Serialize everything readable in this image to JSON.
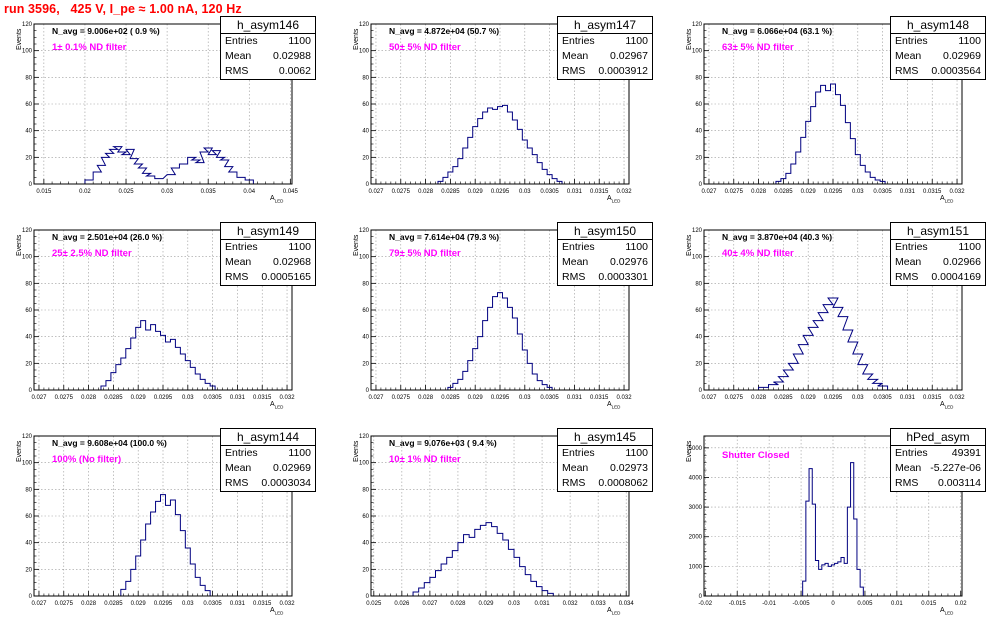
{
  "page": {
    "run_title": "run 3596,   425 V, I_pe ≈ 1.00 nA, 120 Hz"
  },
  "colors": {
    "hist": "#000080",
    "grid": "#9a9a9a",
    "filter_text": "#ff00ff",
    "title_text": "#ff0000"
  },
  "panels": [
    {
      "id": "h_asym146",
      "stat_title": "h_asym146",
      "entries": "1100",
      "mean": "0.02988",
      "rms": "0.0062",
      "navg": "N_avg = 9.006e+02 ( 0.9 %)",
      "filter": "1± 0.1% ND filter",
      "ylabel": "Events",
      "xlabel": "A",
      "xsub": "LED",
      "xlim": [
        0.0138,
        0.0452
      ],
      "ylim": [
        0,
        120
      ],
      "xticks": [
        "0.015",
        "0.02",
        "0.025",
        "0.03",
        "0.035",
        "0.04",
        "0.045"
      ],
      "yticks": [
        "0",
        "20",
        "40",
        "60",
        "80",
        "100",
        "120"
      ]
    },
    {
      "id": "h_asym147",
      "stat_title": "h_asym147",
      "entries": "1100",
      "mean": "0.02967",
      "rms": "0.0003912",
      "navg": "N_avg = 4.872e+04 (50.7 %)",
      "filter": "50± 5% ND filter",
      "ylabel": "Events",
      "xlabel": "A",
      "xsub": "LED",
      "xlim": [
        0.0269,
        0.0321
      ],
      "ylim": [
        0,
        120
      ],
      "xticks": [
        "0.027",
        "0.0275",
        "0.028",
        "0.0285",
        "0.029",
        "0.0295",
        "0.03",
        "0.0305",
        "0.031",
        "0.0315",
        "0.032"
      ],
      "yticks": [
        "0",
        "20",
        "40",
        "60",
        "80",
        "100",
        "120"
      ]
    },
    {
      "id": "h_asym148",
      "stat_title": "h_asym148",
      "entries": "1100",
      "mean": "0.02969",
      "rms": "0.0003564",
      "navg": "N_avg = 6.066e+04 (63.1 %)",
      "filter": "63± 5% ND filter",
      "ylabel": "Events",
      "xlabel": "A",
      "xsub": "LED",
      "xlim": [
        0.0269,
        0.0321
      ],
      "ylim": [
        0,
        120
      ],
      "xticks": [
        "0.027",
        "0.0275",
        "0.028",
        "0.0285",
        "0.029",
        "0.0295",
        "0.03",
        "0.0305",
        "0.031",
        "0.0315",
        "0.032"
      ],
      "yticks": [
        "0",
        "20",
        "40",
        "60",
        "80",
        "100",
        "120"
      ]
    },
    {
      "id": "h_asym149",
      "stat_title": "h_asym149",
      "entries": "1100",
      "mean": "0.02968",
      "rms": "0.0005165",
      "navg": "N_avg = 2.501e+04 (26.0 %)",
      "filter": "25± 2.5% ND filter",
      "ylabel": "Events",
      "xlabel": "A",
      "xsub": "LED",
      "xlim": [
        0.0269,
        0.0321
      ],
      "ylim": [
        0,
        120
      ],
      "xticks": [
        "0.027",
        "0.0275",
        "0.028",
        "0.0285",
        "0.029",
        "0.0295",
        "0.03",
        "0.0305",
        "0.031",
        "0.0315",
        "0.032"
      ],
      "yticks": [
        "0",
        "20",
        "40",
        "60",
        "80",
        "100",
        "120"
      ]
    },
    {
      "id": "h_asym150",
      "stat_title": "h_asym150",
      "entries": "1100",
      "mean": "0.02976",
      "rms": "0.0003301",
      "navg": "N_avg = 7.614e+04 (79.3 %)",
      "filter": "79± 5% ND filter",
      "ylabel": "Events",
      "xlabel": "A",
      "xsub": "LED",
      "xlim": [
        0.0269,
        0.0321
      ],
      "ylim": [
        0,
        120
      ],
      "xticks": [
        "0.027",
        "0.0275",
        "0.028",
        "0.0285",
        "0.029",
        "0.0295",
        "0.03",
        "0.0305",
        "0.031",
        "0.0315",
        "0.032"
      ],
      "yticks": [
        "0",
        "20",
        "40",
        "60",
        "80",
        "100",
        "120"
      ]
    },
    {
      "id": "h_asym151",
      "stat_title": "h_asym151",
      "entries": "1100",
      "mean": "0.02966",
      "rms": "0.0004169",
      "navg": "N_avg = 3.870e+04 (40.3 %)",
      "filter": "40± 4% ND filter",
      "ylabel": "Events",
      "xlabel": "A",
      "xsub": "LED",
      "xlim": [
        0.0269,
        0.0321
      ],
      "ylim": [
        0,
        120
      ],
      "xticks": [
        "0.027",
        "0.0275",
        "0.028",
        "0.0285",
        "0.029",
        "0.0295",
        "0.03",
        "0.0305",
        "0.031",
        "0.0315",
        "0.032"
      ],
      "yticks": [
        "0",
        "20",
        "40",
        "60",
        "80",
        "100",
        "120"
      ]
    },
    {
      "id": "h_asym144",
      "stat_title": "h_asym144",
      "entries": "1100",
      "mean": "0.02969",
      "rms": "0.0003034",
      "navg": "N_avg = 9.608e+04 (100.0 %)",
      "filter": "100% (No filter)",
      "ylabel": "Events",
      "xlabel": "A",
      "xsub": "LED",
      "xlim": [
        0.0269,
        0.0321
      ],
      "ylim": [
        0,
        120
      ],
      "xticks": [
        "0.027",
        "0.0275",
        "0.028",
        "0.0285",
        "0.029",
        "0.0295",
        "0.03",
        "0.0305",
        "0.031",
        "0.0315",
        "0.032"
      ],
      "yticks": [
        "0",
        "20",
        "40",
        "60",
        "80",
        "100",
        "120"
      ]
    },
    {
      "id": "h_asym145",
      "stat_title": "h_asym145",
      "entries": "1100",
      "mean": "0.02973",
      "rms": "0.0008062",
      "navg": "N_avg = 9.076e+03 ( 9.4 %)",
      "filter": "10± 1% ND filter",
      "ylabel": "Events",
      "xlabel": "A",
      "xsub": "LED",
      "xlim": [
        0.0249,
        0.0341
      ],
      "ylim": [
        0,
        120
      ],
      "xticks": [
        "0.025",
        "0.026",
        "0.027",
        "0.028",
        "0.029",
        "0.03",
        "0.031",
        "0.032",
        "0.033",
        "0.034"
      ],
      "yticks": [
        "0",
        "20",
        "40",
        "60",
        "80",
        "100",
        "120"
      ]
    },
    {
      "id": "hPed_asym",
      "stat_title": "hPed_asym",
      "entries": "49391",
      "mean": "-5.227e-06",
      "rms": "0.003114",
      "navg": "",
      "filter": "Shutter Closed",
      "ylabel": "Events",
      "xlabel": "A",
      "xsub": "LED",
      "xlim": [
        -0.0202,
        0.0202
      ],
      "ylim": [
        0,
        5400
      ],
      "xticks": [
        "-0.02",
        "-0.015",
        "-0.01",
        "-0.005",
        "0",
        "0.005",
        "0.01",
        "0.015",
        "0.02"
      ],
      "yticks": [
        "0",
        "1000",
        "2000",
        "3000",
        "4000",
        "5000"
      ]
    }
  ],
  "chart_data": [
    {
      "type": "bar",
      "name": "h_asym146",
      "x_range": [
        0.0138,
        0.0452
      ],
      "ylim": [
        0,
        120
      ],
      "bins": [
        [
          0.0205,
          3
        ],
        [
          0.0215,
          9
        ],
        [
          0.022,
          14
        ],
        [
          0.0225,
          20
        ],
        [
          0.023,
          23
        ],
        [
          0.0235,
          26
        ],
        [
          0.024,
          28
        ],
        [
          0.0245,
          24
        ],
        [
          0.025,
          22
        ],
        [
          0.0255,
          26
        ],
        [
          0.026,
          19
        ],
        [
          0.0265,
          15
        ],
        [
          0.027,
          12
        ],
        [
          0.0275,
          8
        ],
        [
          0.028,
          6
        ],
        [
          0.029,
          4
        ],
        [
          0.0305,
          7
        ],
        [
          0.031,
          12
        ],
        [
          0.032,
          15
        ],
        [
          0.033,
          20
        ],
        [
          0.0335,
          18
        ],
        [
          0.034,
          16
        ],
        [
          0.0345,
          24
        ],
        [
          0.035,
          27
        ],
        [
          0.0355,
          22
        ],
        [
          0.036,
          25
        ],
        [
          0.0365,
          20
        ],
        [
          0.037,
          18
        ],
        [
          0.0375,
          13
        ],
        [
          0.038,
          9
        ],
        [
          0.039,
          5
        ],
        [
          0.04,
          3
        ]
      ]
    },
    {
      "type": "bar",
      "name": "h_asym147",
      "x_range": [
        0.0269,
        0.0321
      ],
      "ylim": [
        0,
        120
      ],
      "bins": [
        [
          0.0283,
          2
        ],
        [
          0.0284,
          5
        ],
        [
          0.0285,
          9
        ],
        [
          0.0286,
          13
        ],
        [
          0.0287,
          19
        ],
        [
          0.0288,
          27
        ],
        [
          0.0289,
          35
        ],
        [
          0.029,
          43
        ],
        [
          0.0291,
          49
        ],
        [
          0.0292,
          54
        ],
        [
          0.0293,
          57
        ],
        [
          0.0294,
          56
        ],
        [
          0.0295,
          58
        ],
        [
          0.0296,
          59
        ],
        [
          0.0297,
          54
        ],
        [
          0.0298,
          48
        ],
        [
          0.0299,
          41
        ],
        [
          0.03,
          33
        ],
        [
          0.0301,
          27
        ],
        [
          0.0302,
          22
        ],
        [
          0.0303,
          16
        ],
        [
          0.0304,
          11
        ],
        [
          0.0305,
          7
        ],
        [
          0.0306,
          4
        ],
        [
          0.0307,
          2
        ]
      ]
    },
    {
      "type": "bar",
      "name": "h_asym148",
      "x_range": [
        0.0269,
        0.0321
      ],
      "ylim": [
        0,
        120
      ],
      "bins": [
        [
          0.0284,
          2
        ],
        [
          0.0285,
          4
        ],
        [
          0.0286,
          8
        ],
        [
          0.0287,
          15
        ],
        [
          0.0288,
          24
        ],
        [
          0.0289,
          35
        ],
        [
          0.029,
          47
        ],
        [
          0.0291,
          58
        ],
        [
          0.0292,
          69
        ],
        [
          0.0293,
          74
        ],
        [
          0.0294,
          70
        ],
        [
          0.0295,
          75
        ],
        [
          0.0296,
          67
        ],
        [
          0.0297,
          59
        ],
        [
          0.0298,
          46
        ],
        [
          0.0299,
          34
        ],
        [
          0.03,
          22
        ],
        [
          0.0301,
          14
        ],
        [
          0.0302,
          9
        ],
        [
          0.0303,
          5
        ],
        [
          0.0304,
          3
        ],
        [
          0.0305,
          2
        ]
      ]
    },
    {
      "type": "bar",
      "name": "h_asym149",
      "x_range": [
        0.0269,
        0.0321
      ],
      "ylim": [
        0,
        120
      ],
      "bins": [
        [
          0.0283,
          3
        ],
        [
          0.0284,
          7
        ],
        [
          0.0285,
          13
        ],
        [
          0.0286,
          19
        ],
        [
          0.0287,
          24
        ],
        [
          0.0288,
          31
        ],
        [
          0.0289,
          39
        ],
        [
          0.029,
          47
        ],
        [
          0.0291,
          52
        ],
        [
          0.0292,
          45
        ],
        [
          0.0293,
          49
        ],
        [
          0.0294,
          44
        ],
        [
          0.0295,
          41
        ],
        [
          0.0296,
          36
        ],
        [
          0.0297,
          38
        ],
        [
          0.0298,
          32
        ],
        [
          0.0299,
          27
        ],
        [
          0.03,
          22
        ],
        [
          0.0301,
          17
        ],
        [
          0.0302,
          12
        ],
        [
          0.0303,
          8
        ],
        [
          0.0304,
          5
        ],
        [
          0.0305,
          3
        ]
      ]
    },
    {
      "type": "bar",
      "name": "h_asym150",
      "x_range": [
        0.0269,
        0.0321
      ],
      "ylim": [
        0,
        120
      ],
      "bins": [
        [
          0.0285,
          2
        ],
        [
          0.0286,
          5
        ],
        [
          0.0287,
          8
        ],
        [
          0.0288,
          14
        ],
        [
          0.0289,
          22
        ],
        [
          0.029,
          31
        ],
        [
          0.0291,
          40
        ],
        [
          0.0292,
          52
        ],
        [
          0.0293,
          62
        ],
        [
          0.0294,
          70
        ],
        [
          0.0295,
          73
        ],
        [
          0.0296,
          69
        ],
        [
          0.0297,
          62
        ],
        [
          0.0298,
          54
        ],
        [
          0.0299,
          42
        ],
        [
          0.03,
          30
        ],
        [
          0.0301,
          20
        ],
        [
          0.0302,
          12
        ],
        [
          0.0303,
          7
        ],
        [
          0.0304,
          4
        ],
        [
          0.0305,
          2
        ]
      ]
    },
    {
      "type": "bar",
      "name": "h_asym151",
      "x_range": [
        0.0269,
        0.0321
      ],
      "ylim": [
        0,
        120
      ],
      "bins": [
        [
          0.0281,
          2
        ],
        [
          0.0283,
          4
        ],
        [
          0.0284,
          6
        ],
        [
          0.0285,
          10
        ],
        [
          0.0286,
          15
        ],
        [
          0.0287,
          20
        ],
        [
          0.0288,
          27
        ],
        [
          0.0289,
          34
        ],
        [
          0.029,
          41
        ],
        [
          0.0291,
          47
        ],
        [
          0.0292,
          52
        ],
        [
          0.0293,
          58
        ],
        [
          0.0294,
          64
        ],
        [
          0.0295,
          69
        ],
        [
          0.0296,
          62
        ],
        [
          0.0297,
          55
        ],
        [
          0.0298,
          45
        ],
        [
          0.0299,
          36
        ],
        [
          0.03,
          27
        ],
        [
          0.0301,
          19
        ],
        [
          0.0302,
          12
        ],
        [
          0.0303,
          8
        ],
        [
          0.0304,
          5
        ],
        [
          0.0305,
          3
        ]
      ]
    },
    {
      "type": "bar",
      "name": "h_asym144",
      "x_range": [
        0.0269,
        0.0321
      ],
      "ylim": [
        0,
        120
      ],
      "bins": [
        [
          0.0287,
          5
        ],
        [
          0.0288,
          11
        ],
        [
          0.0289,
          20
        ],
        [
          0.029,
          30
        ],
        [
          0.0291,
          42
        ],
        [
          0.0292,
          54
        ],
        [
          0.0293,
          63
        ],
        [
          0.0294,
          71
        ],
        [
          0.0295,
          76
        ],
        [
          0.0296,
          68
        ],
        [
          0.0297,
          72
        ],
        [
          0.0298,
          61
        ],
        [
          0.0299,
          49
        ],
        [
          0.03,
          36
        ],
        [
          0.0301,
          24
        ],
        [
          0.0302,
          14
        ],
        [
          0.0303,
          8
        ],
        [
          0.0304,
          4
        ]
      ]
    },
    {
      "type": "bar",
      "name": "h_asym145",
      "x_range": [
        0.0249,
        0.0341
      ],
      "ylim": [
        0,
        120
      ],
      "bins": [
        [
          0.0265,
          3
        ],
        [
          0.0267,
          6
        ],
        [
          0.0269,
          10
        ],
        [
          0.0271,
          14
        ],
        [
          0.0273,
          19
        ],
        [
          0.0275,
          24
        ],
        [
          0.0277,
          29
        ],
        [
          0.0279,
          34
        ],
        [
          0.0281,
          40
        ],
        [
          0.0283,
          46
        ],
        [
          0.0285,
          44
        ],
        [
          0.0287,
          50
        ],
        [
          0.0289,
          53
        ],
        [
          0.0291,
          55
        ],
        [
          0.0293,
          52
        ],
        [
          0.0295,
          47
        ],
        [
          0.0297,
          42
        ],
        [
          0.0299,
          35
        ],
        [
          0.0301,
          29
        ],
        [
          0.0303,
          22
        ],
        [
          0.0305,
          16
        ],
        [
          0.0307,
          11
        ],
        [
          0.0309,
          7
        ],
        [
          0.0311,
          4
        ],
        [
          0.0313,
          2
        ]
      ]
    },
    {
      "type": "bar",
      "name": "hPed_asym",
      "x_range": [
        -0.0202,
        0.0202
      ],
      "ylim": [
        0,
        5400
      ],
      "bins": [
        [
          -0.0045,
          500
        ],
        [
          -0.004,
          3200
        ],
        [
          -0.0035,
          4300
        ],
        [
          -0.003,
          3100
        ],
        [
          -0.0025,
          1200
        ],
        [
          -0.002,
          900
        ],
        [
          -0.0015,
          1050
        ],
        [
          -0.001,
          1100
        ],
        [
          -0.0005,
          1000
        ],
        [
          0,
          1050
        ],
        [
          0.0005,
          1100
        ],
        [
          0.001,
          1150
        ],
        [
          0.0015,
          1300
        ],
        [
          0.002,
          1100
        ],
        [
          0.0025,
          3000
        ],
        [
          0.003,
          4500
        ],
        [
          0.0035,
          2600
        ],
        [
          0.004,
          900
        ],
        [
          0.0045,
          300
        ]
      ]
    }
  ]
}
